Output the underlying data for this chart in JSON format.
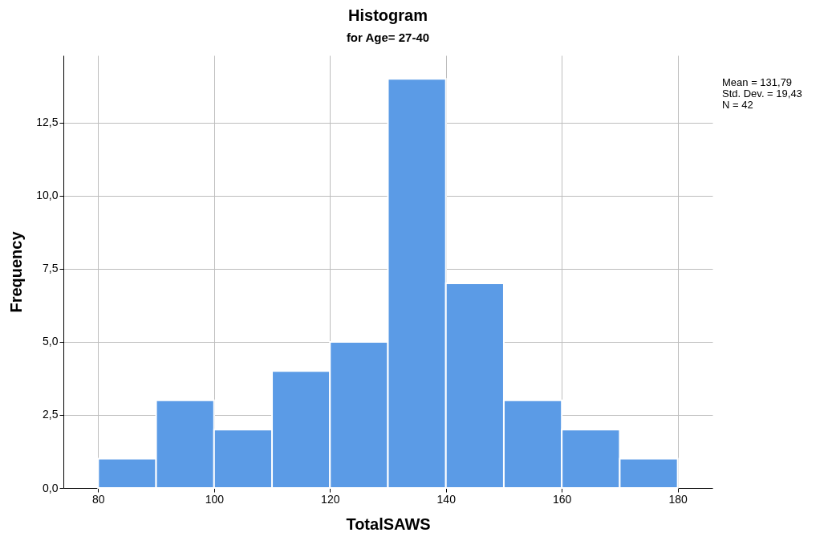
{
  "chart_data": {
    "type": "histogram",
    "title": "Histogram",
    "subtitle": "for Age= 27-40",
    "xlabel": "TotalSAWS",
    "ylabel": "Frequency",
    "bins": [
      80,
      90,
      100,
      110,
      120,
      130,
      140,
      150,
      160,
      170,
      180
    ],
    "values": [
      1,
      3,
      2,
      4,
      5,
      14,
      7,
      3,
      2,
      1
    ],
    "color": "#5b9be6",
    "xlim": [
      74,
      186
    ],
    "xticks": [
      80,
      100,
      120,
      140,
      160,
      180
    ],
    "ylim": [
      0,
      14.8
    ],
    "yticks": [
      {
        "value": 0,
        "label": "0,0"
      },
      {
        "value": 2.5,
        "label": "2,5"
      },
      {
        "value": 5,
        "label": "5,0"
      },
      {
        "value": 7.5,
        "label": "7,5"
      },
      {
        "value": 10,
        "label": "10,0"
      },
      {
        "value": 12.5,
        "label": "12,5"
      }
    ],
    "grid": true,
    "annotations": [
      "Mean = 131,79",
      "Std. Dev. = 19,43",
      "N = 42"
    ]
  }
}
